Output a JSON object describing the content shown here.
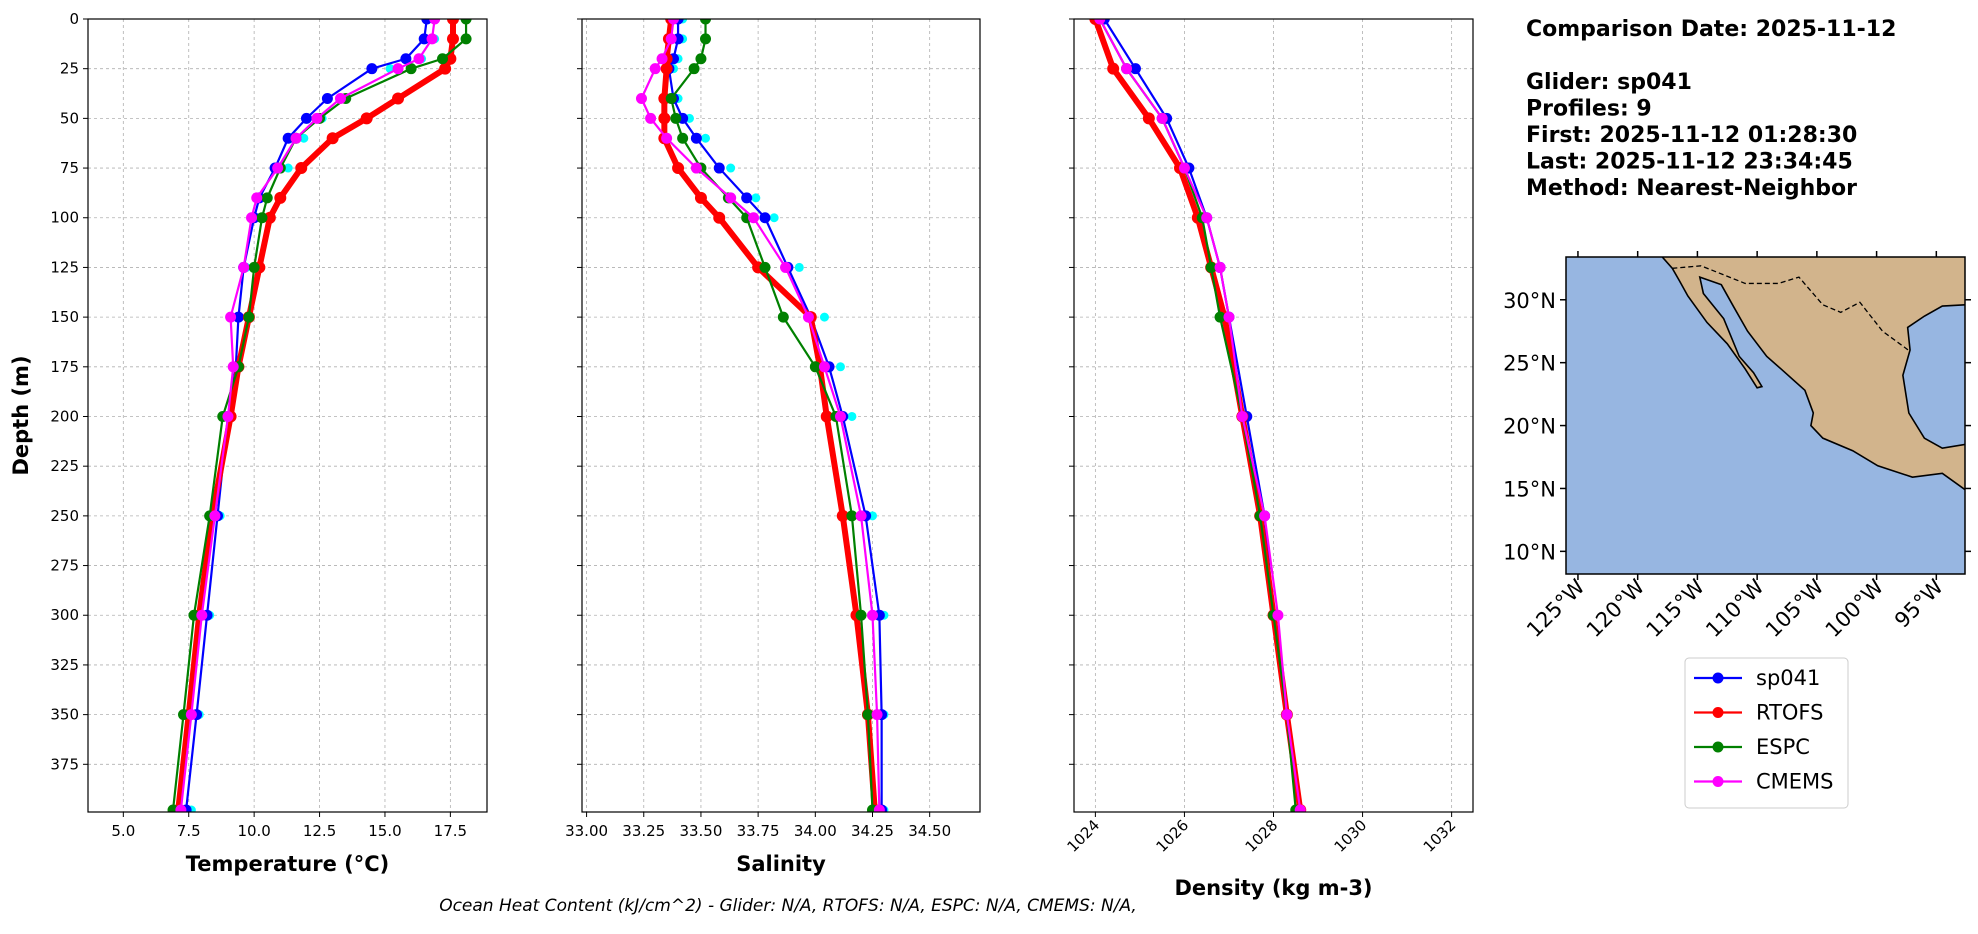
{
  "chart_data": [
    {
      "type": "line",
      "xlabel": "Temperature (°C)",
      "ylabel": "Depth (m)",
      "xlim": [
        3.65,
        18.9
      ],
      "ylim": [
        0,
        399
      ],
      "y_inverted": true,
      "grid": true,
      "xticks": [
        {
          "value": 5,
          "label": "5.0"
        },
        7.5,
        {
          "value": 10,
          "label": "10.0"
        },
        12.5,
        {
          "value": 15,
          "label": "15.0"
        },
        17.5
      ],
      "yticks": [
        0,
        25,
        50,
        75,
        100,
        125,
        150,
        175,
        200,
        225,
        250,
        275,
        300,
        325,
        350,
        375
      ],
      "y": [
        0,
        10,
        20,
        25,
        40,
        50,
        60,
        75,
        90,
        100,
        125,
        150,
        175,
        200,
        250,
        300,
        350,
        398
      ],
      "series": [
        {
          "color": "#00ffff",
          "values": [
            16.9,
            16.9,
            16.4,
            15.2,
            13.5,
            12.6,
            11.9,
            11.3,
            10.5,
            10.2,
            9.7,
            9.4,
            9.3,
            9.0,
            8.7,
            8.3,
            7.9,
            7.6
          ]
        },
        {
          "name": "sp041",
          "color": "#0000ff",
          "values": [
            16.6,
            16.5,
            15.8,
            14.5,
            12.8,
            12.0,
            11.3,
            10.8,
            10.2,
            10.0,
            9.6,
            9.4,
            9.3,
            9.0,
            8.6,
            8.2,
            7.8,
            7.4
          ]
        },
        {
          "name": "RTOFS",
          "color": "#ff0000",
          "values": [
            17.6,
            17.6,
            17.5,
            17.3,
            15.5,
            14.3,
            13.0,
            11.8,
            11.0,
            10.6,
            10.2,
            9.8,
            9.4,
            9.1,
            8.4,
            7.9,
            7.5,
            7.1
          ]
        },
        {
          "name": "ESPC",
          "color": "#008000",
          "values": [
            18.1,
            18.1,
            17.2,
            16.0,
            13.5,
            12.5,
            11.6,
            11.0,
            10.5,
            10.3,
            10.0,
            9.8,
            9.4,
            8.8,
            8.3,
            7.7,
            7.3,
            6.9
          ]
        },
        {
          "name": "CMEMS",
          "color": "#ff00ff",
          "values": [
            16.9,
            16.8,
            16.3,
            15.5,
            13.3,
            12.4,
            11.6,
            10.9,
            10.1,
            9.9,
            9.6,
            9.1,
            9.2,
            9.0,
            8.5,
            8.0,
            7.6,
            7.2
          ]
        }
      ]
    },
    {
      "type": "line",
      "xlabel": "Salinity",
      "xlim": [
        32.98,
        34.72
      ],
      "ylim": [
        0,
        399
      ],
      "y_inverted": true,
      "grid": true,
      "xticks": [
        {
          "value": 33,
          "label": "33.00"
        },
        {
          "value": 33.25,
          "label": "33.25"
        },
        {
          "value": 33.5,
          "label": "33.50"
        },
        {
          "value": 33.75,
          "label": "33.75"
        },
        {
          "value": 34,
          "label": "34.00"
        },
        {
          "value": 34.25,
          "label": "34.25"
        },
        {
          "value": 34.5,
          "label": "34.50"
        }
      ],
      "y": [
        0,
        10,
        20,
        25,
        40,
        50,
        60,
        75,
        90,
        100,
        125,
        150,
        175,
        200,
        250,
        300,
        350,
        398
      ],
      "series": [
        {
          "color": "#00ffff",
          "values": [
            33.42,
            33.42,
            33.4,
            33.38,
            33.4,
            33.45,
            33.52,
            33.63,
            33.74,
            33.82,
            33.93,
            34.04,
            34.11,
            34.16,
            34.25,
            34.3,
            34.3,
            34.3
          ]
        },
        {
          "name": "sp041",
          "color": "#0000ff",
          "values": [
            33.4,
            33.4,
            33.38,
            33.36,
            33.38,
            33.42,
            33.48,
            33.58,
            33.7,
            33.78,
            33.88,
            33.98,
            34.06,
            34.12,
            34.22,
            34.28,
            34.29,
            34.29
          ]
        },
        {
          "name": "RTOFS",
          "color": "#ff0000",
          "values": [
            33.37,
            33.36,
            33.35,
            33.35,
            33.34,
            33.34,
            33.34,
            33.4,
            33.5,
            33.58,
            33.75,
            33.98,
            34.02,
            34.05,
            34.12,
            34.18,
            34.23,
            34.26
          ]
        },
        {
          "name": "ESPC",
          "color": "#008000",
          "values": [
            33.52,
            33.52,
            33.5,
            33.47,
            33.37,
            33.39,
            33.42,
            33.5,
            33.62,
            33.7,
            33.78,
            33.86,
            34.0,
            34.09,
            34.16,
            34.2,
            34.23,
            34.25
          ]
        },
        {
          "name": "CMEMS",
          "color": "#ff00ff",
          "values": [
            33.38,
            33.37,
            33.33,
            33.3,
            33.24,
            33.28,
            33.35,
            33.48,
            33.63,
            33.73,
            33.87,
            33.97,
            34.04,
            34.11,
            34.2,
            34.25,
            34.27,
            34.28
          ]
        }
      ]
    },
    {
      "type": "line",
      "xlabel": "Density (kg m-3)",
      "xtick_rotation": 45,
      "xlim": [
        1023.52,
        1032.48
      ],
      "ylim": [
        0,
        399
      ],
      "y_inverted": true,
      "grid": true,
      "xticks": [
        1024,
        1026,
        1028,
        1030,
        1032
      ],
      "y": [
        0,
        25,
        50,
        75,
        100,
        125,
        150,
        200,
        250,
        300,
        350,
        398
      ],
      "series": [
        {
          "name": "sp041",
          "color": "#0000ff",
          "values": [
            1024.2,
            1024.9,
            1025.6,
            1026.1,
            1026.5,
            1026.8,
            1027.0,
            1027.4,
            1027.8,
            1028.0,
            1028.3,
            1028.6
          ]
        },
        {
          "name": "RTOFS",
          "color": "#ff0000",
          "values": [
            1024.0,
            1024.4,
            1025.2,
            1025.9,
            1026.3,
            1026.6,
            1026.9,
            1027.3,
            1027.7,
            1028.0,
            1028.3,
            1028.6
          ]
        },
        {
          "name": "ESPC",
          "color": "#008000",
          "values": [
            1024.1,
            1024.7,
            1025.5,
            1026.0,
            1026.4,
            1026.6,
            1026.8,
            1027.3,
            1027.7,
            1028.0,
            1028.3,
            1028.5
          ]
        },
        {
          "name": "CMEMS",
          "color": "#ff00ff",
          "values": [
            1024.1,
            1024.7,
            1025.5,
            1026.0,
            1026.5,
            1026.8,
            1027.0,
            1027.3,
            1027.8,
            1028.1,
            1028.3,
            1028.6
          ]
        }
      ]
    }
  ],
  "info": [
    "Comparison Date: 2025-11-12",
    "Glider: sp041",
    "Profiles: 9",
    "First: 2025-11-12 01:28:30",
    "Last: 2025-11-12 23:34:45",
    "Method: Nearest-Neighbor"
  ],
  "map": {
    "lonlim": [
      -126,
      -92.6
    ],
    "latlim": [
      8.2,
      33.4
    ],
    "lat_ticks": [
      {
        "value": 10,
        "label": "10°N"
      },
      {
        "value": 15,
        "label": "15°N"
      },
      {
        "value": 20,
        "label": "20°N"
      },
      {
        "value": 25,
        "label": "25°N"
      },
      {
        "value": 30,
        "label": "30°N"
      }
    ],
    "lon_ticks": [
      {
        "value": -125,
        "label": "125°W"
      },
      {
        "value": -120,
        "label": "120°W"
      },
      {
        "value": -115,
        "label": "115°W"
      },
      {
        "value": -110,
        "label": "110°W"
      },
      {
        "value": -105,
        "label": "105°W"
      },
      {
        "value": -100,
        "label": "100°W"
      },
      {
        "value": -95,
        "label": "95°W"
      }
    ]
  },
  "footer": "Ocean Heat Content (kJ/cm^2) - Glider: N/A,  RTOFS: N/A,  ESPC: N/A,  CMEMS: N/A,"
}
